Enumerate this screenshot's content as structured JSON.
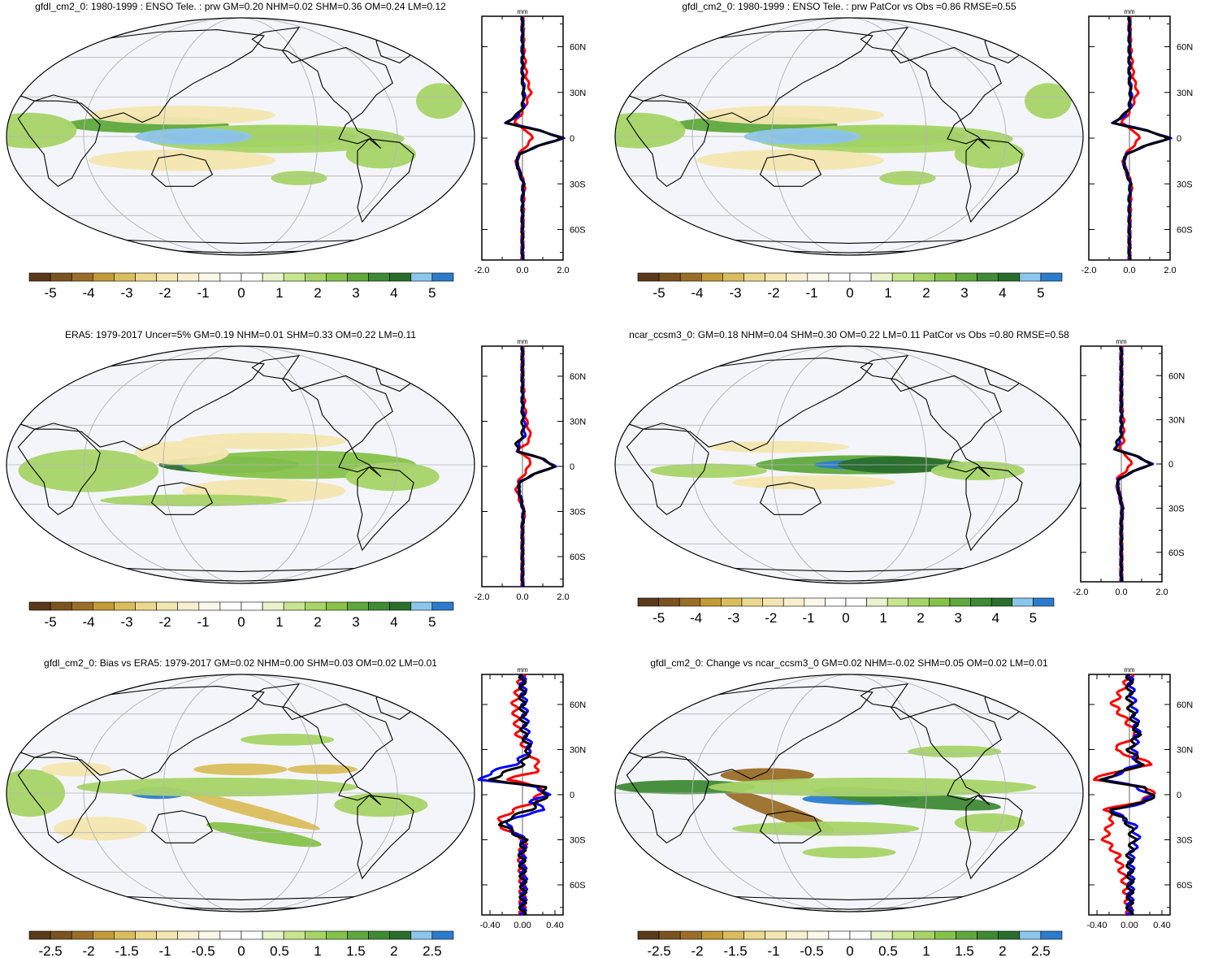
{
  "colors": {
    "enso_scale": [
      "#5a3a1a",
      "#7a5320",
      "#9a6e28",
      "#c39b36",
      "#d9bd5c",
      "#ecd98f",
      "#f3e6b0",
      "#f7efcf",
      "#fbf8ea",
      "#ffffff",
      "#ffffff",
      "#e8f3cc",
      "#c8e58f",
      "#a6d467",
      "#86c24a",
      "#5ea83d",
      "#3e8a35",
      "#2a6e2c",
      "#8cc6ec",
      "#2b7ccc"
    ],
    "bias_scale": [
      "#5a3a1a",
      "#7a5320",
      "#9a6e28",
      "#c39b36",
      "#d9bd5c",
      "#ecd98f",
      "#f3e6b0",
      "#f7efcf",
      "#fbf8ea",
      "#ffffff",
      "#ffffff",
      "#e8f3cc",
      "#c8e58f",
      "#a6d467",
      "#86c24a",
      "#5ea83d",
      "#3e8a35",
      "#2a6e2c",
      "#8cc6ec",
      "#2b7ccc"
    ],
    "ocean": "#f4f5fa",
    "model_line": "#ff0000",
    "obs_line": "#0000ff",
    "total_line": "#000000"
  },
  "panels": [
    {
      "id": "p1",
      "title": "gfdl_cm2_0: 1980-1999 : ENSO Tele. : prw GM=0.20 NHM=0.02 SHM=0.36 OM=0.24 LM=0.12",
      "colorbar_labels": [
        "-5",
        "-4",
        "-3",
        "-2",
        "-1",
        "0",
        "1",
        "2",
        "3",
        "4",
        "5"
      ],
      "scale": "enso_scale",
      "zonal": {
        "unit": "mm",
        "xticks": [
          "-2.0",
          "0.0",
          "2.0"
        ],
        "xlim": [
          -2,
          2
        ],
        "lat_labels": [
          "60N",
          "30N",
          "0",
          "30S",
          "60S"
        ],
        "lat_values": [
          60,
          30,
          0,
          -30,
          -60
        ]
      }
    },
    {
      "id": "p2",
      "title": "gfdl_cm2_0: 1980-1999 : ENSO Tele. : prw PatCor vs Obs =0.86 RMSE=0.55",
      "colorbar_labels": [
        "-5",
        "-4",
        "-3",
        "-2",
        "-1",
        "0",
        "1",
        "2",
        "3",
        "4",
        "5"
      ],
      "scale": "enso_scale",
      "zonal": {
        "unit": "mm",
        "xticks": [
          "-2.0",
          "0.0",
          "2.0"
        ],
        "xlim": [
          -2,
          2
        ],
        "lat_labels": [
          "60N",
          "30N",
          "0",
          "30S",
          "60S"
        ],
        "lat_values": [
          60,
          30,
          0,
          -30,
          -60
        ]
      }
    },
    {
      "id": "p3",
      "title": "ERA5: 1979-2017 Uncer=5% GM=0.19 NHM=0.01 SHM=0.33 OM=0.22 LM=0.11",
      "colorbar_labels": [
        "-5",
        "-4",
        "-3",
        "-2",
        "-1",
        "0",
        "1",
        "2",
        "3",
        "4",
        "5"
      ],
      "scale": "enso_scale",
      "zonal": {
        "unit": "mm",
        "xticks": [
          "-2.0",
          "0.0",
          "2.0"
        ],
        "xlim": [
          -2,
          2
        ],
        "lat_labels": [
          "60N",
          "30N",
          "0",
          "30S",
          "60S"
        ],
        "lat_values": [
          60,
          30,
          0,
          -30,
          -60
        ]
      }
    },
    {
      "id": "p4",
      "title": "ncar_ccsm3_0: GM=0.18 NHM=0.04 SHM=0.30 OM=0.22 LM=0.11 PatCor vs Obs =0.80 RMSE=0.58",
      "colorbar_labels": [
        "-5",
        "-4",
        "-3",
        "-2",
        "-1",
        "0",
        "1",
        "2",
        "3",
        "4",
        "5"
      ],
      "scale": "enso_scale",
      "zonal": {
        "unit": "mm",
        "xticks": [
          "-2.0",
          "0.0",
          "2.0"
        ],
        "xlim": [
          -2,
          2
        ],
        "lat_labels": [
          "60N",
          "30N",
          "0",
          "30S",
          "60S"
        ],
        "lat_values": [
          60,
          30,
          0,
          -30,
          -60
        ]
      }
    },
    {
      "id": "p5",
      "title": "gfdl_cm2_0: Bias vs ERA5: 1979-2017 GM=0.02 NHM=0.00 SHM=0.03 OM=0.02 LM=0.01",
      "colorbar_labels": [
        "-2.5",
        "-2",
        "-1.5",
        "-1",
        "-0.5",
        "0",
        "0.5",
        "1",
        "1.5",
        "2",
        "2.5"
      ],
      "scale": "bias_scale",
      "zonal": {
        "unit": "mm",
        "xticks": [
          "-0.40",
          "0.00",
          "0.40"
        ],
        "xlim": [
          -0.5,
          0.5
        ],
        "lat_labels": [
          "60N",
          "30N",
          "0",
          "30S",
          "60S"
        ],
        "lat_values": [
          60,
          30,
          0,
          -30,
          -60
        ]
      }
    },
    {
      "id": "p6",
      "title": "gfdl_cm2_0: Change vs ncar_ccsm3_0 GM=0.02 NHM=-0.02 SHM=0.05 OM=0.02 LM=0.01",
      "colorbar_labels": [
        "-2.5",
        "-2",
        "-1.5",
        "-1",
        "-0.5",
        "0",
        "0.5",
        "1",
        "1.5",
        "2",
        "2.5"
      ],
      "scale": "bias_scale",
      "zonal": {
        "unit": "mm",
        "xticks": [
          "-0.40",
          "0.00",
          "0.40"
        ],
        "xlim": [
          -0.5,
          0.5
        ],
        "lat_labels": [
          "60N",
          "30N",
          "0",
          "30S",
          "60S"
        ],
        "lat_values": [
          60,
          30,
          0,
          -30,
          -60
        ]
      }
    }
  ],
  "chart_data": [
    {
      "type": "line",
      "title": "gfdl_cm2_0: 1980-1999 : ENSO Tele. : prw GM=0.20 NHM=0.02 SHM=0.36 OM=0.24 LM=0.12",
      "xlabel": "",
      "ylabel": "",
      "xlim": [
        -2,
        2
      ],
      "ylim": [
        -80,
        80
      ],
      "x": [
        -80,
        -60,
        -40,
        -30,
        -20,
        -15,
        -10,
        -5,
        0,
        5,
        10,
        15,
        20,
        30,
        40,
        60,
        80
      ],
      "series": [
        {
          "values": [
            0,
            0,
            0.05,
            0.1,
            -0.2,
            -0.3,
            -0.15,
            0.2,
            0.5,
            0.2,
            -0.4,
            -0.1,
            0.1,
            0.4,
            0.2,
            0.05,
            0
          ]
        },
        {
          "values": [
            0,
            0,
            0,
            0.05,
            -0.2,
            -0.3,
            -0.1,
            0.8,
            2.0,
            0.9,
            -0.8,
            -0.2,
            0.05,
            0.1,
            0,
            0,
            0
          ]
        },
        {
          "values": [
            0,
            0,
            0,
            0.05,
            -0.2,
            -0.3,
            -0.1,
            0.8,
            2.0,
            0.8,
            -0.8,
            -0.3,
            0,
            0.05,
            0,
            0,
            0
          ]
        }
      ]
    },
    {
      "type": "line",
      "title": "gfdl_cm2_0: 1980-1999 : ENSO Tele. : prw PatCor vs Obs =0.86 RMSE=0.55",
      "xlabel": "",
      "ylabel": "",
      "xlim": [
        -2,
        2
      ],
      "ylim": [
        -80,
        80
      ],
      "x": [
        -80,
        -60,
        -40,
        -30,
        -20,
        -15,
        -10,
        -5,
        0,
        5,
        10,
        15,
        20,
        30,
        40,
        60,
        80
      ],
      "series": [
        {
          "values": [
            0,
            0,
            0.05,
            0.1,
            -0.2,
            -0.3,
            -0.15,
            0.2,
            0.5,
            0.2,
            -0.4,
            -0.1,
            0.1,
            0.4,
            0.2,
            0.05,
            0
          ]
        },
        {
          "values": [
            0,
            0,
            0,
            0.05,
            -0.2,
            -0.3,
            -0.1,
            0.8,
            2.0,
            0.9,
            -0.8,
            -0.2,
            0.05,
            0.1,
            0,
            0,
            0
          ]
        },
        {
          "values": [
            0,
            0,
            0,
            0.05,
            -0.2,
            -0.3,
            -0.1,
            0.8,
            2.0,
            0.8,
            -0.8,
            -0.3,
            0,
            0.05,
            0,
            0,
            0
          ]
        }
      ]
    },
    {
      "type": "line",
      "title": "ERA5: 1979-2017 Uncer=5% GM=0.19 NHM=0.01 SHM=0.33 OM=0.22 LM=0.11",
      "xlabel": "",
      "ylabel": "",
      "xlim": [
        -2,
        2
      ],
      "ylim": [
        -80,
        80
      ],
      "x": [
        -80,
        -60,
        -40,
        -30,
        -20,
        -15,
        -10,
        -5,
        0,
        5,
        10,
        15,
        20,
        30,
        40,
        60,
        80
      ],
      "series": [
        {
          "values": [
            0,
            0,
            0,
            0.1,
            -0.2,
            -0.3,
            -0.2,
            0.1,
            0.3,
            0.4,
            -0.3,
            0.2,
            0.4,
            0.2,
            0.1,
            0,
            0
          ]
        },
        {
          "values": [
            0,
            0,
            0,
            0.05,
            -0.1,
            -0.2,
            -0.1,
            0.6,
            1.6,
            1.0,
            -0.2,
            -0.2,
            0.1,
            0.1,
            0,
            0,
            0
          ]
        },
        {
          "values": [
            0,
            0,
            0,
            0.05,
            -0.1,
            -0.2,
            -0.1,
            0.6,
            1.6,
            1.0,
            -0.2,
            -0.3,
            0,
            0,
            0,
            0,
            0
          ]
        }
      ]
    },
    {
      "type": "line",
      "title": "ncar_ccsm3_0: GM=0.18 NHM=0.04 SHM=0.30 OM=0.22 LM=0.11 PatCor vs Obs =0.80 RMSE=0.58",
      "xlabel": "",
      "ylabel": "",
      "xlim": [
        -2,
        2
      ],
      "ylim": [
        -80,
        80
      ],
      "x": [
        -80,
        -60,
        -40,
        -30,
        -20,
        -15,
        -10,
        -5,
        0,
        5,
        10,
        15,
        20,
        30,
        40,
        60,
        80
      ],
      "series": [
        {
          "values": [
            0,
            0,
            0,
            0.05,
            -0.1,
            -0.2,
            -0.2,
            0.2,
            0.5,
            0.3,
            -0.1,
            0.1,
            0.1,
            0.1,
            0,
            0,
            0
          ]
        },
        {
          "values": [
            0,
            0,
            0,
            0.05,
            -0.1,
            -0.2,
            -0.1,
            0.6,
            1.5,
            0.8,
            -0.3,
            -0.1,
            0,
            0,
            0,
            0,
            0
          ]
        },
        {
          "values": [
            0,
            0,
            0,
            0.05,
            -0.1,
            -0.2,
            -0.1,
            0.6,
            1.5,
            0.8,
            -0.3,
            -0.2,
            0,
            0,
            0,
            0,
            0
          ]
        }
      ]
    },
    {
      "type": "line",
      "title": "gfdl_cm2_0: Bias vs ERA5: 1979-2017 GM=0.02 NHM=0.00 SHM=0.03 OM=0.02 LM=0.01",
      "xlabel": "",
      "ylabel": "",
      "xlim": [
        -0.5,
        0.5
      ],
      "ylim": [
        -80,
        80
      ],
      "x": [
        -80,
        -60,
        -40,
        -30,
        -20,
        -15,
        -10,
        -5,
        0,
        5,
        10,
        15,
        20,
        30,
        40,
        60,
        80
      ],
      "series": [
        {
          "values": [
            0,
            0,
            -0.02,
            0.03,
            -0.3,
            -0.25,
            -0.1,
            0.15,
            0.2,
            0.25,
            -0.2,
            0.15,
            0.2,
            0.05,
            -0.05,
            -0.1,
            0
          ]
        },
        {
          "values": [
            0,
            0.02,
            0.0,
            0.02,
            -0.2,
            -0.1,
            0.3,
            0.1,
            0.3,
            0.2,
            -0.5,
            -0.4,
            -0.1,
            0.1,
            0.05,
            0.02,
            0
          ]
        },
        {
          "values": [
            0,
            0.01,
            -0.01,
            0.02,
            -0.25,
            -0.15,
            0.1,
            0.2,
            0.3,
            0.25,
            -0.4,
            -0.2,
            0.0,
            0.08,
            0.02,
            0,
            0
          ]
        }
      ]
    },
    {
      "type": "line",
      "title": "gfdl_cm2_0: Change vs ncar_ccsm3_0 GM=0.02 NHM=-0.02 SHM=0.05 OM=0.02 LM=0.01",
      "xlabel": "",
      "ylabel": "",
      "xlim": [
        -0.5,
        0.5
      ],
      "ylim": [
        -80,
        80
      ],
      "x": [
        -80,
        -60,
        -40,
        -30,
        -20,
        -15,
        -10,
        -5,
        0,
        5,
        10,
        15,
        20,
        30,
        40,
        60,
        80
      ],
      "series": [
        {
          "values": [
            0,
            -0.05,
            -0.15,
            -0.3,
            -0.25,
            -0.2,
            -0.3,
            0.1,
            0.3,
            0.2,
            -0.45,
            -0.2,
            0.3,
            -0.2,
            0.1,
            -0.2,
            0.02
          ]
        },
        {
          "values": [
            0,
            0.02,
            0.02,
            0.1,
            0.05,
            -0.1,
            -0.2,
            0.2,
            0.25,
            0.1,
            -0.3,
            -0.1,
            0.1,
            0.05,
            0.1,
            0.05,
            0
          ]
        },
        {
          "values": [
            0,
            0.01,
            0.0,
            0.05,
            0.0,
            -0.1,
            -0.25,
            0.2,
            0.3,
            0.15,
            -0.35,
            -0.1,
            0.15,
            0.0,
            0.1,
            0.0,
            0
          ]
        }
      ]
    }
  ]
}
